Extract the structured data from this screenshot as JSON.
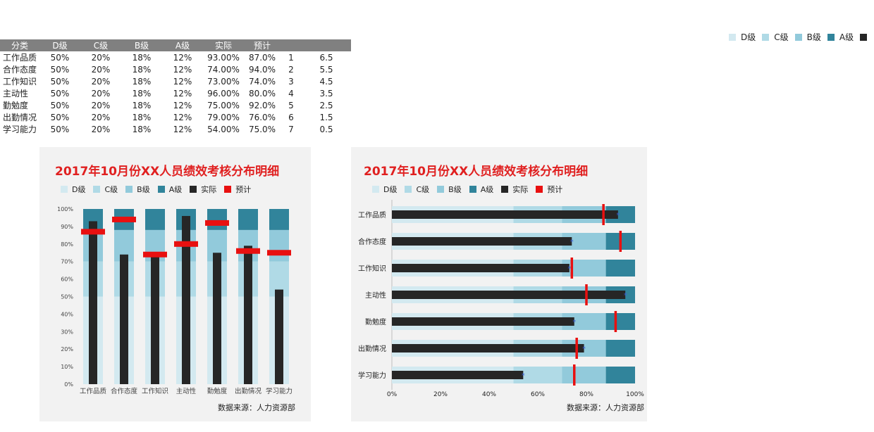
{
  "table": {
    "headers": [
      "分类",
      "D级",
      "C级",
      "B级",
      "A级",
      "实际",
      "预计"
    ],
    "rows": [
      {
        "category": "工作品质",
        "d": "50%",
        "c": "20%",
        "b": "18%",
        "a": "12%",
        "actual": "93.00%",
        "expected": "87.0%",
        "index": "1",
        "pos": "6.5"
      },
      {
        "category": "合作态度",
        "d": "50%",
        "c": "20%",
        "b": "18%",
        "a": "12%",
        "actual": "74.00%",
        "expected": "94.0%",
        "index": "2",
        "pos": "5.5"
      },
      {
        "category": "工作知识",
        "d": "50%",
        "c": "20%",
        "b": "18%",
        "a": "12%",
        "actual": "73.00%",
        "expected": "74.0%",
        "index": "3",
        "pos": "4.5"
      },
      {
        "category": "主动性",
        "d": "50%",
        "c": "20%",
        "b": "18%",
        "a": "12%",
        "actual": "96.00%",
        "expected": "80.0%",
        "index": "4",
        "pos": "3.5"
      },
      {
        "category": "勤勉度",
        "d": "50%",
        "c": "20%",
        "b": "18%",
        "a": "12%",
        "actual": "75.00%",
        "expected": "92.0%",
        "index": "5",
        "pos": "2.5"
      },
      {
        "category": "出勤情况",
        "d": "50%",
        "c": "20%",
        "b": "18%",
        "a": "12%",
        "actual": "79.00%",
        "expected": "76.0%",
        "index": "6",
        "pos": "1.5"
      },
      {
        "category": "学习能力",
        "d": "50%",
        "c": "20%",
        "b": "18%",
        "a": "12%",
        "actual": "54.00%",
        "expected": "75.0%",
        "index": "7",
        "pos": "0.5"
      }
    ]
  },
  "legend": [
    {
      "label": "D级",
      "color": "#d3e9f0"
    },
    {
      "label": "C级",
      "color": "#b0dae6"
    },
    {
      "label": "B级",
      "color": "#92cadb"
    },
    {
      "label": "A级",
      "color": "#31849b"
    },
    {
      "label": "实际",
      "color": "#262626"
    },
    {
      "label": "预计",
      "color": "#e81010"
    }
  ],
  "top_legend": [
    {
      "label": "D级",
      "color": "#d3e9f0"
    },
    {
      "label": "C级",
      "color": "#b0dae6"
    },
    {
      "label": "B级",
      "color": "#92cadb"
    },
    {
      "label": "A级",
      "color": "#31849b"
    },
    {
      "label": "",
      "color": "#262626"
    }
  ],
  "chart_data": [
    {
      "type": "bar",
      "orientation": "vertical",
      "title": "2017年10月份XX人员绩效考核分布明细",
      "categories": [
        "工作品质",
        "合作态度",
        "工作知识",
        "主动性",
        "勤勉度",
        "出勤情况",
        "学习能力"
      ],
      "stacked_bands": [
        {
          "name": "D级",
          "values": [
            50,
            50,
            50,
            50,
            50,
            50,
            50
          ]
        },
        {
          "name": "C级",
          "values": [
            20,
            20,
            20,
            20,
            20,
            20,
            20
          ]
        },
        {
          "name": "B级",
          "values": [
            18,
            18,
            18,
            18,
            18,
            18,
            18
          ]
        },
        {
          "name": "A级",
          "values": [
            12,
            12,
            12,
            12,
            12,
            12,
            12
          ]
        }
      ],
      "series": [
        {
          "name": "实际",
          "values": [
            93,
            74,
            73,
            96,
            75,
            79,
            54
          ]
        },
        {
          "name": "预计",
          "values": [
            87,
            94,
            74,
            80,
            92,
            76,
            75
          ]
        }
      ],
      "yticks": [
        "0%",
        "10%",
        "20%",
        "30%",
        "40%",
        "50%",
        "60%",
        "70%",
        "80%",
        "90%",
        "100%"
      ],
      "ylim": [
        0,
        100
      ],
      "legend_position": "top",
      "source": "数据来源：人力资源部"
    },
    {
      "type": "bar",
      "orientation": "horizontal",
      "title": "2017年10月份XX人员绩效考核分布明细",
      "categories": [
        "工作品质",
        "合作态度",
        "工作知识",
        "主动性",
        "勤勉度",
        "出勤情况",
        "学习能力"
      ],
      "stacked_bands": [
        {
          "name": "D级",
          "values": [
            50,
            50,
            50,
            50,
            50,
            50,
            50
          ]
        },
        {
          "name": "C级",
          "values": [
            20,
            20,
            20,
            20,
            20,
            20,
            20
          ]
        },
        {
          "name": "B级",
          "values": [
            18,
            18,
            18,
            18,
            18,
            18,
            18
          ]
        },
        {
          "name": "A级",
          "values": [
            12,
            12,
            12,
            12,
            12,
            12,
            12
          ]
        }
      ],
      "series": [
        {
          "name": "实际",
          "values": [
            93,
            74,
            73,
            96,
            75,
            79,
            54
          ]
        },
        {
          "name": "预计",
          "values": [
            87,
            94,
            74,
            80,
            92,
            76,
            75
          ]
        }
      ],
      "xticks": [
        "0%",
        "20%",
        "40%",
        "60%",
        "80%",
        "100%"
      ],
      "xlim": [
        0,
        100
      ],
      "legend_position": "top",
      "source": "数据来源：人力资源部"
    }
  ]
}
